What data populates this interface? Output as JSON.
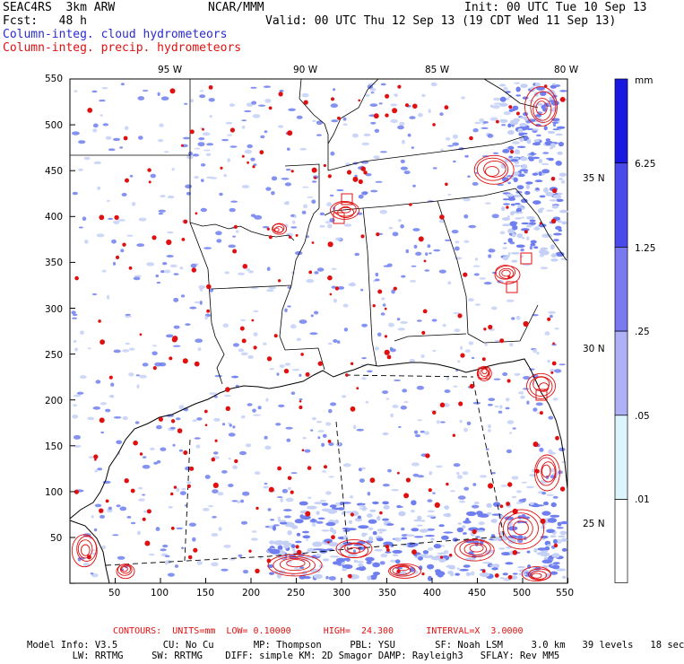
{
  "header": {
    "model": "SEAC4RS  3km ARW",
    "org": "NCAR/MMM",
    "init": "Init: 00 UTC Tue 10 Sep 13",
    "fcst": "Fcst:   48 h",
    "valid": "Valid: 00 UTC Thu 12 Sep 13 (19 CDT Wed 11 Sep 13)",
    "field_blue": "Column-integ. cloud hydrometeors",
    "field_red": "Column-integ. precip. hydrometeors"
  },
  "axes": {
    "lon_labels": [
      "95 W",
      "90 W",
      "85 W",
      "80 W"
    ],
    "lat_labels": [
      "35 N",
      "30 N",
      "25 N"
    ],
    "left_ticks": [
      "550",
      "500",
      "450",
      "400",
      "350",
      "300",
      "250",
      "200",
      "150",
      "100",
      "50"
    ],
    "bottom_ticks": [
      "50",
      "100",
      "150",
      "200",
      "250",
      "300",
      "350",
      "400",
      "450",
      "500",
      "550"
    ]
  },
  "colorbar": {
    "unit": "mm",
    "labels": [
      "6.25",
      "1.25",
      ".25",
      ".05",
      ".01"
    ],
    "colors": [
      "#1818e0",
      "#4a4aea",
      "#7a7af0",
      "#b0b0f6",
      "#dcf4fb",
      "#ffffff"
    ]
  },
  "footer": {
    "contours": "CONTOURS:  UNITS=mm  LOW= 0.10000      HIGH=  24.300      INTERVAL=X  3.0000",
    "line1": "Model Info: V3.5        CU: No Cu       MP: Thompson     PBL: YSU       SF: Noah LSM     3.0 km   39 levels   18 sec",
    "line2": "        LW: RRTMG     SW: RRTMG    DIFF: simple KM: 2D Smagor DAMP: Rayleigh3   SFLAY: Rev MM5"
  },
  "colors": {
    "cloud": "#6f7ff0",
    "cloud_light": "#c4d0f6",
    "precip": "#e01010",
    "contour": "#e01010",
    "map_lines": "#000000"
  }
}
